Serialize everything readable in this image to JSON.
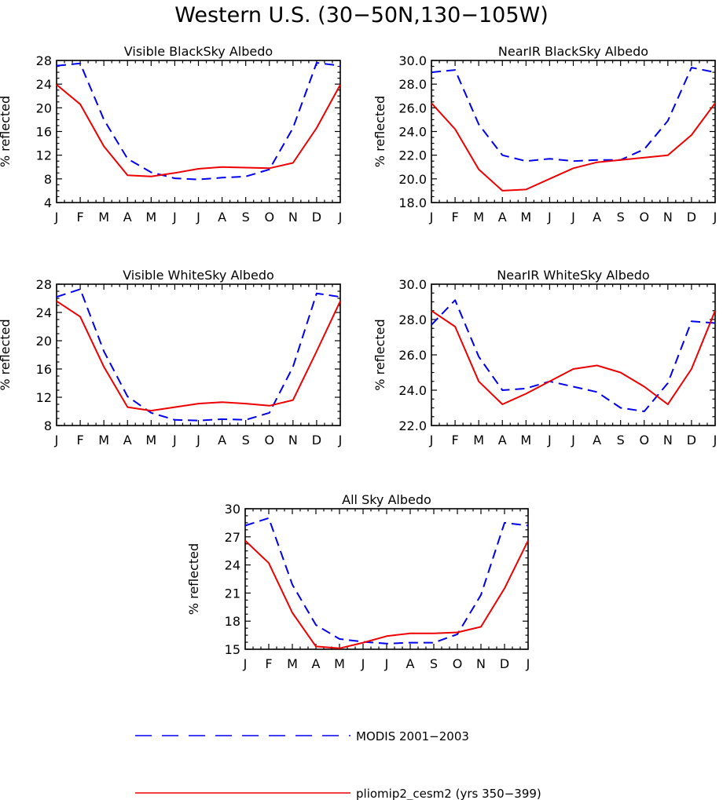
{
  "title": "Western U.S. (30−50N,130−105W)",
  "colors": {
    "modis": "#0000ee",
    "model": "#ee0000"
  },
  "legend": [
    {
      "key": "modis",
      "label": "MODIS 2001−2003",
      "style": "dashed"
    },
    {
      "key": "model",
      "label": "pliomip2_cesm2 (yrs 350−399)",
      "style": "solid"
    }
  ],
  "chart_data": [
    {
      "type": "line",
      "title": "Visible BlackSky Albedo",
      "ylabel": "% reflected",
      "xlabel": "",
      "categories": [
        "J",
        "F",
        "M",
        "A",
        "M",
        "J",
        "J",
        "A",
        "S",
        "O",
        "N",
        "D",
        "J"
      ],
      "ylim": [
        4,
        28
      ],
      "yticks": [
        "4",
        "8",
        "12",
        "16",
        "20",
        "24",
        "28"
      ],
      "series": [
        {
          "key": "modis",
          "values": [
            27.1,
            27.5,
            18.0,
            11.4,
            9.1,
            8.1,
            7.9,
            8.2,
            8.4,
            9.6,
            16.6,
            27.6,
            27.1
          ]
        },
        {
          "key": "model",
          "values": [
            23.9,
            20.6,
            13.5,
            8.6,
            8.4,
            9.0,
            9.7,
            10.0,
            9.9,
            9.8,
            10.7,
            16.6,
            23.9
          ]
        }
      ]
    },
    {
      "type": "line",
      "title": "NearIR BlackSky Albedo",
      "ylabel": "% reflected",
      "xlabel": "",
      "categories": [
        "J",
        "F",
        "M",
        "A",
        "M",
        "J",
        "J",
        "A",
        "S",
        "O",
        "N",
        "D",
        "J"
      ],
      "ylim": [
        18,
        30
      ],
      "yticks": [
        "18.0",
        "20.0",
        "22.0",
        "24.0",
        "26.0",
        "28.0",
        "30.0"
      ],
      "series": [
        {
          "key": "modis",
          "values": [
            29.0,
            29.2,
            24.6,
            22.0,
            21.5,
            21.7,
            21.5,
            21.6,
            21.6,
            22.5,
            24.9,
            29.4,
            29.0
          ]
        },
        {
          "key": "model",
          "values": [
            26.4,
            24.2,
            20.8,
            19.0,
            19.1,
            20.0,
            20.9,
            21.4,
            21.6,
            21.8,
            22.0,
            23.7,
            26.4
          ]
        }
      ]
    },
    {
      "type": "line",
      "title": "Visible WhiteSky Albedo",
      "ylabel": "% reflected",
      "xlabel": "",
      "categories": [
        "J",
        "F",
        "M",
        "A",
        "M",
        "J",
        "J",
        "A",
        "S",
        "O",
        "N",
        "D",
        "J"
      ],
      "ylim": [
        8,
        28
      ],
      "yticks": [
        "8",
        "12",
        "16",
        "20",
        "24",
        "28"
      ],
      "series": [
        {
          "key": "modis",
          "values": [
            26.2,
            27.3,
            18.5,
            12.1,
            9.8,
            8.8,
            8.7,
            8.9,
            8.8,
            9.8,
            16.3,
            26.7,
            26.2
          ]
        },
        {
          "key": "model",
          "values": [
            25.6,
            23.4,
            16.3,
            10.6,
            10.1,
            10.6,
            11.1,
            11.3,
            11.1,
            10.8,
            11.6,
            18.5,
            25.6
          ]
        }
      ]
    },
    {
      "type": "line",
      "title": "NearIR WhiteSky Albedo",
      "ylabel": "% reflected",
      "xlabel": "",
      "categories": [
        "J",
        "F",
        "M",
        "A",
        "M",
        "J",
        "J",
        "A",
        "S",
        "O",
        "N",
        "D",
        "J"
      ],
      "ylim": [
        22,
        30
      ],
      "yticks": [
        "22.0",
        "24.0",
        "26.0",
        "28.0",
        "30.0"
      ],
      "series": [
        {
          "key": "modis",
          "values": [
            27.7,
            29.1,
            25.9,
            24.0,
            24.1,
            24.5,
            24.2,
            23.9,
            23.0,
            22.8,
            24.4,
            27.9,
            27.8
          ]
        },
        {
          "key": "model",
          "values": [
            28.5,
            27.6,
            24.5,
            23.2,
            23.8,
            24.5,
            25.2,
            25.4,
            25.0,
            24.2,
            23.2,
            25.2,
            28.5
          ]
        }
      ]
    },
    {
      "type": "line",
      "title": "All Sky Albedo",
      "ylabel": "% reflected",
      "xlabel": "",
      "categories": [
        "J",
        "F",
        "M",
        "A",
        "M",
        "J",
        "J",
        "A",
        "S",
        "O",
        "N",
        "D",
        "J"
      ],
      "ylim": [
        15,
        30
      ],
      "yticks": [
        "15",
        "18",
        "21",
        "24",
        "27",
        "30"
      ],
      "series": [
        {
          "key": "modis",
          "values": [
            28.2,
            29.0,
            21.9,
            17.6,
            16.1,
            15.8,
            15.6,
            15.7,
            15.7,
            16.6,
            20.8,
            28.5,
            28.2
          ]
        },
        {
          "key": "model",
          "values": [
            26.6,
            24.2,
            18.9,
            15.3,
            15.1,
            15.7,
            16.4,
            16.7,
            16.7,
            16.8,
            17.4,
            21.5,
            26.6
          ]
        }
      ]
    }
  ]
}
